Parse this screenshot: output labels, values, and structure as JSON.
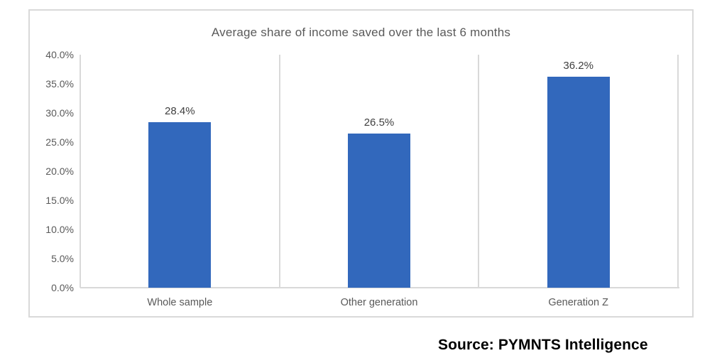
{
  "chart_data": {
    "type": "bar",
    "title": "Average share of income saved over the last 6 months",
    "categories": [
      "Whole sample",
      "Other generation",
      "Generation Z"
    ],
    "values": [
      28.4,
      26.5,
      36.2
    ],
    "value_labels": [
      "28.4%",
      "26.5%",
      "36.2%"
    ],
    "ylim": [
      0,
      40
    ],
    "ytick_interval": 5,
    "ytick_labels": [
      "40.0%",
      "35.0%",
      "30.0%",
      "25.0%",
      "20.0%",
      "15.0%",
      "10.0%",
      "5.0%",
      "0.0%"
    ],
    "grid": "vertical category separator lines only, no horizontal gridlines",
    "legend_position": "none",
    "source": "Source: PYMNTS Intelligence"
  },
  "colors": {
    "bar": "#3268BC",
    "axis_line": "#D9D9D9",
    "frame_border": "#D9D9D9",
    "tick_text": "#595959",
    "title_text": "#595959",
    "value_label_text": "#3F3F3F",
    "source_text": "#000000"
  }
}
